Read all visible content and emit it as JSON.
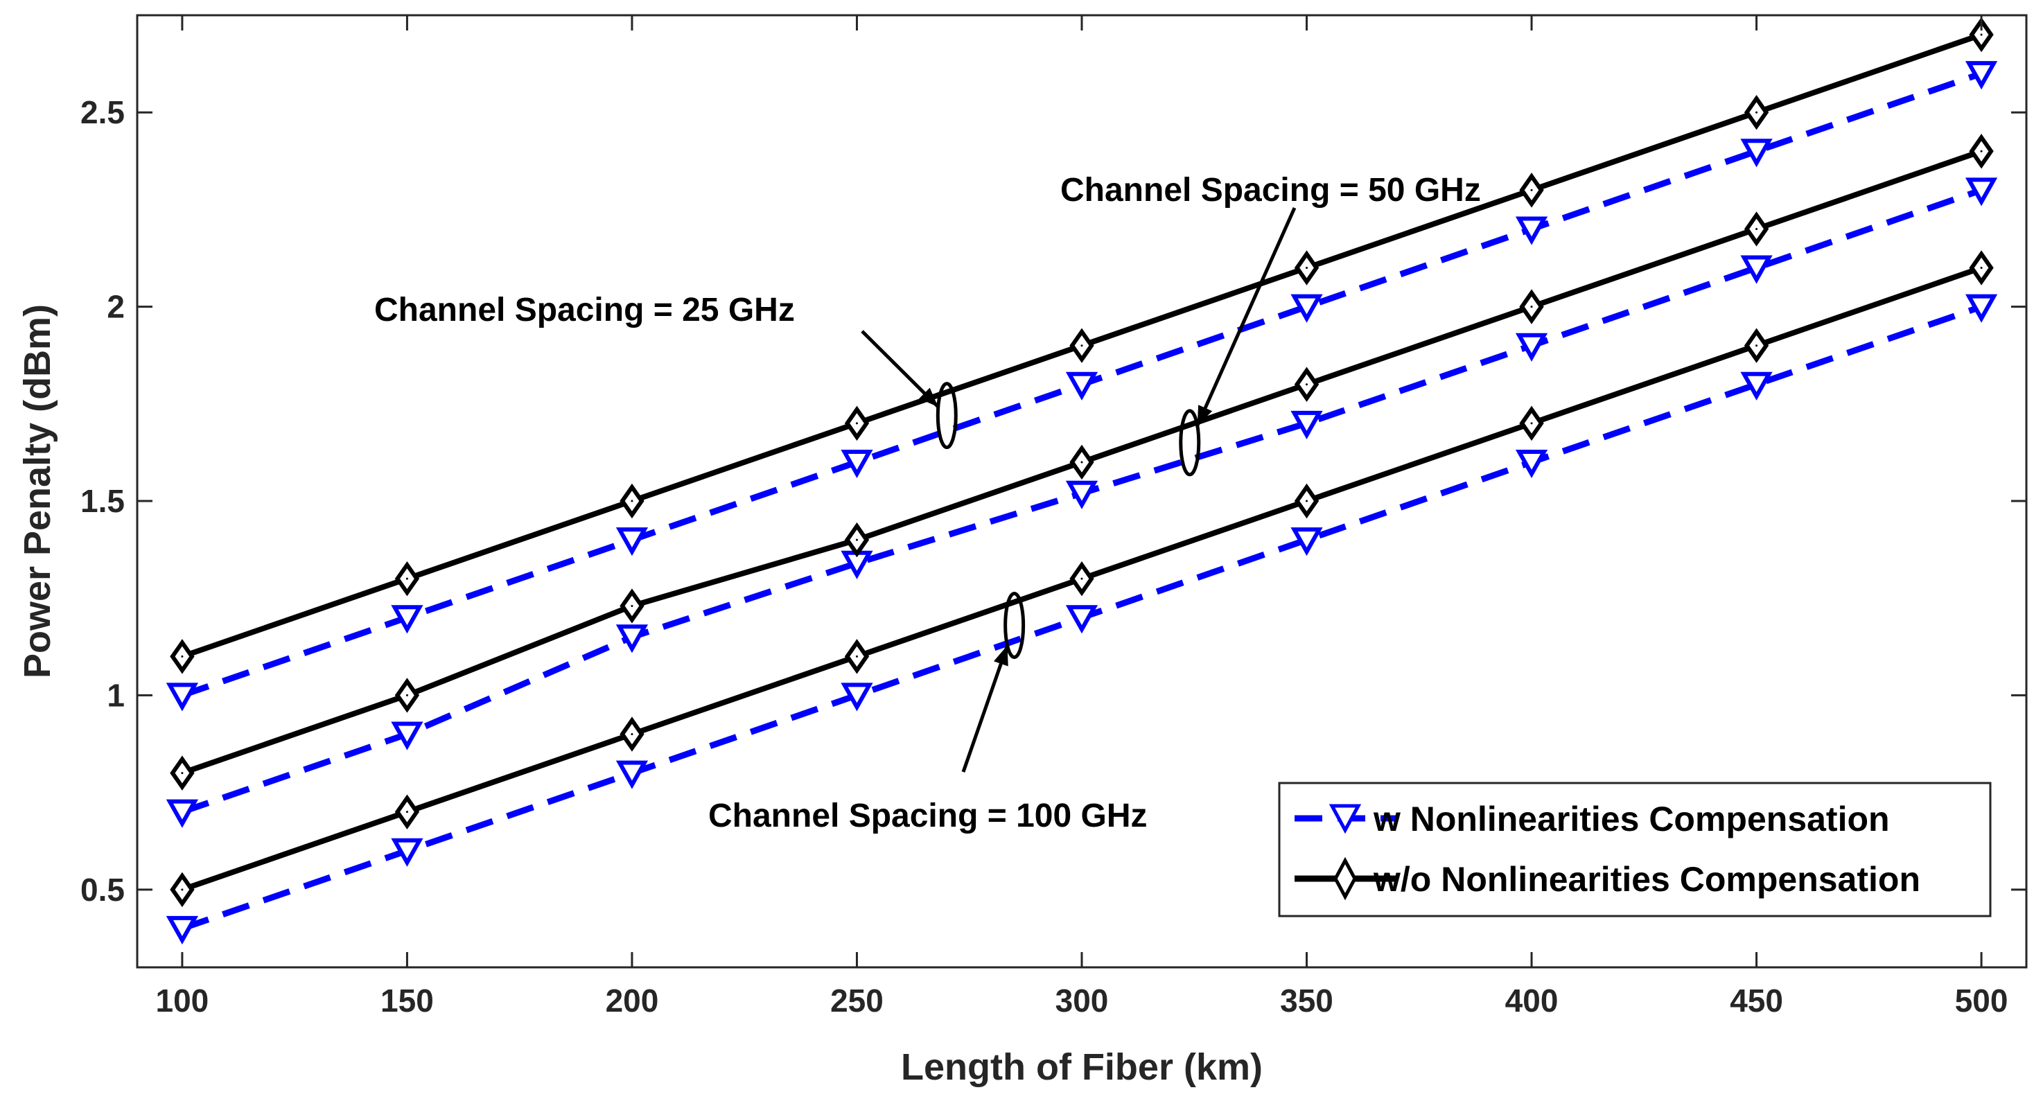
{
  "chart_data": {
    "type": "line",
    "title": "",
    "xlabel": "Length of Fiber (km)",
    "ylabel": "Power Penalty (dBm)",
    "xlim": [
      90,
      510
    ],
    "ylim": [
      0.3,
      2.75
    ],
    "grid": false,
    "x": [
      100,
      150,
      200,
      250,
      300,
      350,
      400,
      450,
      500
    ],
    "xticks": [
      "100",
      "150",
      "200",
      "250",
      "300",
      "350",
      "400",
      "450",
      "500"
    ],
    "ytick_values": [
      0.5,
      1,
      1.5,
      2,
      2.5
    ],
    "yticks": [
      "0.5",
      "1",
      "1.5",
      "2",
      "2.5"
    ],
    "series": [
      {
        "name": "w Nonlinearities Compensation",
        "group": "25 GHz",
        "style": "dashed",
        "marker": "triangle-down",
        "color": "#0000ff",
        "values": [
          1.0,
          1.2,
          1.4,
          1.6,
          1.8,
          2.0,
          2.2,
          2.4,
          2.6
        ]
      },
      {
        "name": "w/o Nonlinearities Compensation",
        "group": "25 GHz",
        "style": "solid",
        "marker": "diamond",
        "color": "#000000",
        "values": [
          1.1,
          1.3,
          1.5,
          1.7,
          1.9,
          2.1,
          2.3,
          2.5,
          2.7
        ]
      },
      {
        "name": "w Nonlinearities Compensation",
        "group": "50 GHz",
        "style": "dashed",
        "marker": "triangle-down",
        "color": "#0000ff",
        "values": [
          0.7,
          0.9,
          1.15,
          1.34,
          1.52,
          1.7,
          1.9,
          2.1,
          2.3
        ]
      },
      {
        "name": "w/o Nonlinearities Compensation",
        "group": "50 GHz",
        "style": "solid",
        "marker": "diamond",
        "color": "#000000",
        "values": [
          0.8,
          1.0,
          1.23,
          1.4,
          1.6,
          1.8,
          2.0,
          2.2,
          2.4
        ]
      },
      {
        "name": "w Nonlinearities Compensation",
        "group": "100 GHz",
        "style": "dashed",
        "marker": "triangle-down",
        "color": "#0000ff",
        "values": [
          0.4,
          0.6,
          0.8,
          1.0,
          1.2,
          1.4,
          1.6,
          1.8,
          2.0
        ]
      },
      {
        "name": "w/o Nonlinearities Compensation",
        "group": "100 GHz",
        "style": "solid",
        "marker": "diamond",
        "color": "#000000",
        "values": [
          0.5,
          0.7,
          0.9,
          1.1,
          1.3,
          1.5,
          1.7,
          1.9,
          2.1
        ]
      }
    ],
    "annotations": [
      {
        "text": "Channel Spacing = 25 GHz",
        "target": [
          270,
          1.72
        ]
      },
      {
        "text": "Channel Spacing = 50 GHz",
        "target": [
          324,
          1.65
        ]
      },
      {
        "text": "Channel Spacing = 100 GHz",
        "target": [
          285,
          1.18
        ]
      }
    ],
    "legend": {
      "position": "bottom-right",
      "entries": [
        "w Nonlinearities Compensation",
        "w/o Nonlinearities Compensation"
      ]
    }
  }
}
